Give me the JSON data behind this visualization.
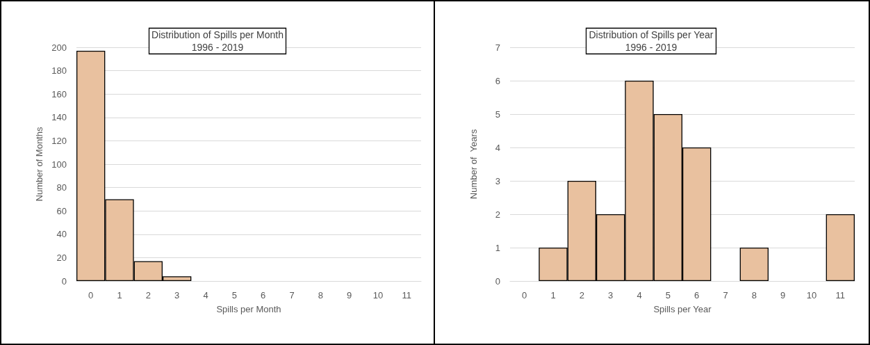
{
  "chart_data": [
    {
      "type": "bar",
      "title": "Distribution of Spills per Month",
      "subtitle": "1996 - 2019",
      "xlabel": "Spills per Month",
      "ylabel": "Number of Months",
      "categories": [
        "0",
        "1",
        "2",
        "3",
        "4",
        "5",
        "6",
        "7",
        "8",
        "9",
        "10",
        "11"
      ],
      "values": [
        197,
        70,
        17,
        4,
        0,
        0,
        0,
        0,
        0,
        0,
        0,
        0
      ],
      "color": "#e9c19f",
      "ylim": [
        0,
        200
      ],
      "yticks": [
        0,
        20,
        40,
        60,
        80,
        100,
        120,
        140,
        160,
        180,
        200
      ],
      "grid": "y"
    },
    {
      "type": "bar",
      "title": "Distribution of Spills per Year",
      "subtitle": "1996 - 2019",
      "xlabel": "Spills per Year",
      "ylabel": "Number of  Years",
      "categories": [
        "0",
        "1",
        "2",
        "3",
        "4",
        "5",
        "6",
        "7",
        "8",
        "9",
        "10",
        "11"
      ],
      "values": [
        0,
        1,
        3,
        2,
        6,
        5,
        4,
        0,
        1,
        0,
        0,
        2
      ],
      "color": "#e9c19f",
      "ylim": [
        0,
        7
      ],
      "yticks": [
        0,
        1,
        2,
        3,
        4,
        5,
        6,
        7
      ],
      "grid": "y"
    }
  ]
}
